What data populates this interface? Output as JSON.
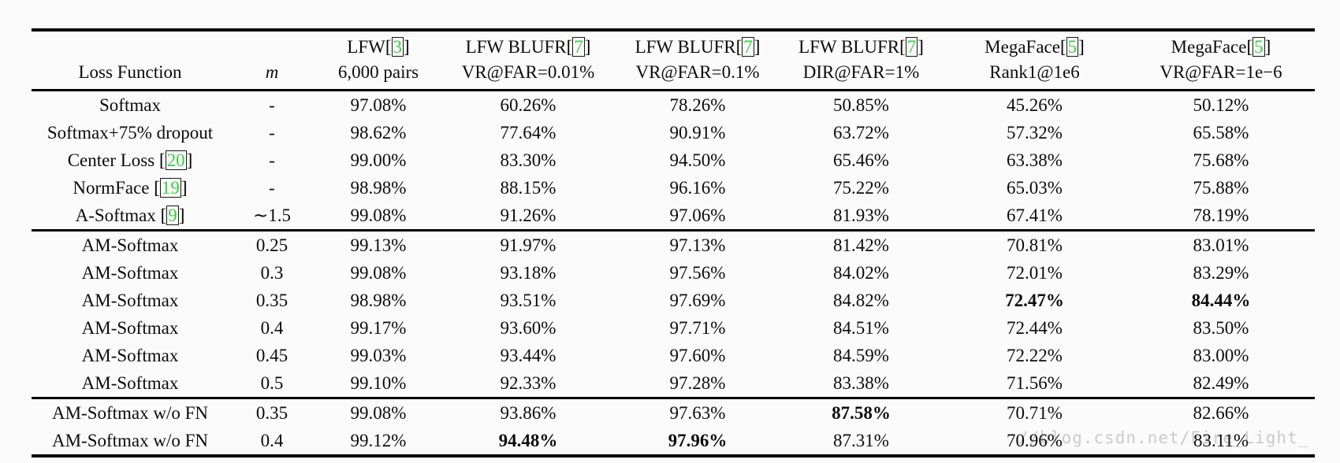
{
  "page": {
    "background": "#fbfbfb",
    "watermark_text": "//blog.csdn.net/Fire_Light_"
  },
  "colors": {
    "citation_green": "#35d13c",
    "rule_black": "#000000",
    "watermark_gray": "#cbcbcb"
  },
  "table": {
    "header": {
      "cols": [
        {
          "top": null,
          "bottom": "Loss Function",
          "italic": false
        },
        {
          "top": null,
          "bottom": "m",
          "italic": true
        },
        {
          "top": {
            "text": "LFW",
            "cite": "3"
          },
          "bottom": "6,000 pairs",
          "italic": false
        },
        {
          "top": {
            "text": "LFW BLUFR",
            "cite": "7"
          },
          "bottom": "VR@FAR=0.01%",
          "italic": false
        },
        {
          "top": {
            "text": "LFW BLUFR",
            "cite": "7"
          },
          "bottom": "VR@FAR=0.1%",
          "italic": false
        },
        {
          "top": {
            "text": "LFW BLUFR",
            "cite": "7"
          },
          "bottom": "DIR@FAR=1%",
          "italic": false
        },
        {
          "top": {
            "text": "MegaFace",
            "cite": "5"
          },
          "bottom": "Rank1@1e6",
          "italic": false
        },
        {
          "top": {
            "text": "MegaFace",
            "cite": "5"
          },
          "bottom": "VR@FAR=1e−6",
          "italic": false
        }
      ]
    },
    "groups": [
      {
        "rows": [
          {
            "loss": "Softmax",
            "cite": null,
            "m": "-",
            "values": [
              "97.08%",
              "60.26%",
              "78.26%",
              "50.85%",
              "45.26%",
              "50.12%"
            ],
            "bold": []
          },
          {
            "loss": "Softmax+75% dropout",
            "cite": null,
            "m": "-",
            "values": [
              "98.62%",
              "77.64%",
              "90.91%",
              "63.72%",
              "57.32%",
              "65.58%"
            ],
            "bold": []
          },
          {
            "loss": "Center Loss",
            "cite": "20",
            "m": "-",
            "values": [
              "99.00%",
              "83.30%",
              "94.50%",
              "65.46%",
              "63.38%",
              "75.68%"
            ],
            "bold": []
          },
          {
            "loss": "NormFace",
            "cite": "19",
            "m": "-",
            "values": [
              "98.98%",
              "88.15%",
              "96.16%",
              "75.22%",
              "65.03%",
              "75.88%"
            ],
            "bold": []
          },
          {
            "loss": "A-Softmax",
            "cite": "9",
            "m": "∼1.5",
            "values": [
              "99.08%",
              "91.26%",
              "97.06%",
              "81.93%",
              "67.41%",
              "78.19%"
            ],
            "bold": []
          }
        ]
      },
      {
        "rows": [
          {
            "loss": "AM-Softmax",
            "cite": null,
            "m": "0.25",
            "values": [
              "99.13%",
              "91.97%",
              "97.13%",
              "81.42%",
              "70.81%",
              "83.01%"
            ],
            "bold": []
          },
          {
            "loss": "AM-Softmax",
            "cite": null,
            "m": "0.3",
            "values": [
              "99.08%",
              "93.18%",
              "97.56%",
              "84.02%",
              "72.01%",
              "83.29%"
            ],
            "bold": []
          },
          {
            "loss": "AM-Softmax",
            "cite": null,
            "m": "0.35",
            "values": [
              "98.98%",
              "93.51%",
              "97.69%",
              "84.82%",
              "72.47%",
              "84.44%"
            ],
            "bold": [
              4,
              5
            ]
          },
          {
            "loss": "AM-Softmax",
            "cite": null,
            "m": "0.4",
            "values": [
              "99.17%",
              "93.60%",
              "97.71%",
              "84.51%",
              "72.44%",
              "83.50%"
            ],
            "bold": []
          },
          {
            "loss": "AM-Softmax",
            "cite": null,
            "m": "0.45",
            "values": [
              "99.03%",
              "93.44%",
              "97.60%",
              "84.59%",
              "72.22%",
              "83.00%"
            ],
            "bold": []
          },
          {
            "loss": "AM-Softmax",
            "cite": null,
            "m": "0.5",
            "values": [
              "99.10%",
              "92.33%",
              "97.28%",
              "83.38%",
              "71.56%",
              "82.49%"
            ],
            "bold": []
          }
        ]
      },
      {
        "rows": [
          {
            "loss": "AM-Softmax w/o FN",
            "cite": null,
            "m": "0.35",
            "values": [
              "99.08%",
              "93.86%",
              "97.63%",
              "87.58%",
              "70.71%",
              "82.66%"
            ],
            "bold": [
              3
            ]
          },
          {
            "loss": "AM-Softmax w/o FN",
            "cite": null,
            "m": "0.4",
            "values": [
              "99.12%",
              "94.48%",
              "97.96%",
              "87.31%",
              "70.96%",
              "83.11%"
            ],
            "bold": [
              1,
              2
            ]
          }
        ]
      }
    ]
  }
}
